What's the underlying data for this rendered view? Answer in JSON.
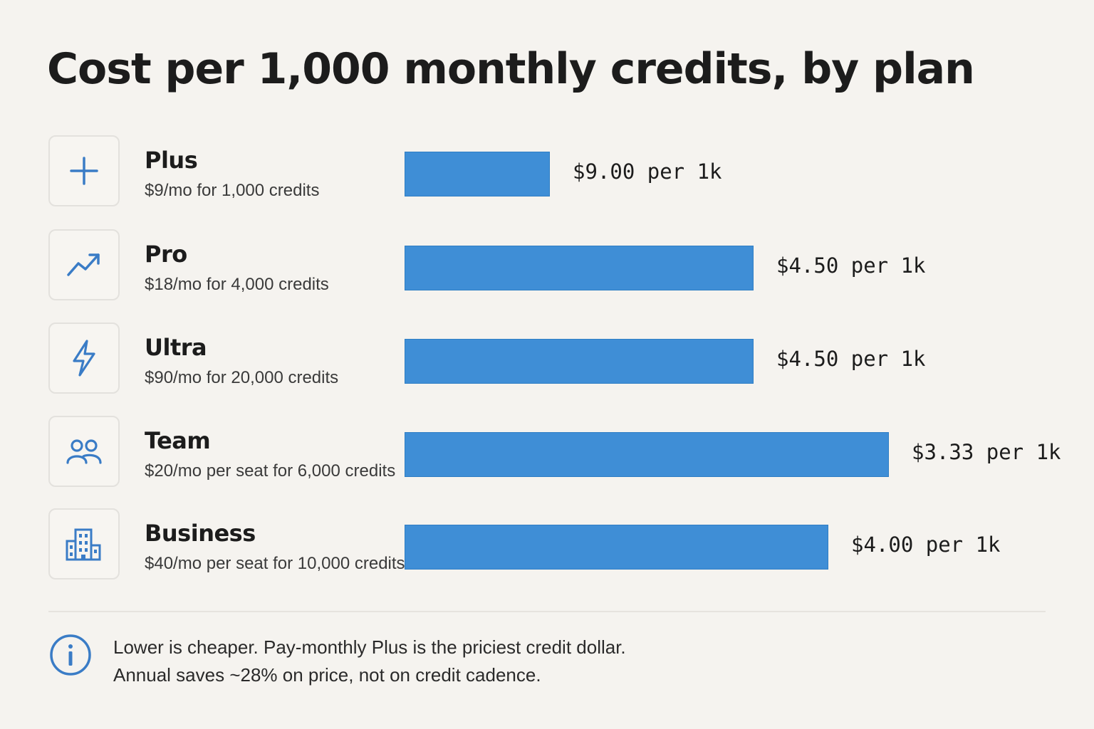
{
  "chart_data": {
    "type": "bar",
    "orientation": "horizontal",
    "title": "Cost per 1,000 monthly credits, by plan",
    "categories": [
      "Plus",
      "Pro",
      "Ultra",
      "Team",
      "Business"
    ],
    "descriptions": [
      "$9/mo for 1,000 credits",
      "$18/mo for 4,000 credits",
      "$90/mo for 20,000 credits",
      "$20/mo per seat for 6,000 credits",
      "$40/mo per seat for 10,000 credits"
    ],
    "values": [
      9.0,
      4.5,
      4.5,
      3.33,
      4.0
    ],
    "bar_fractions": [
      0.3,
      0.72,
      0.72,
      1.0,
      0.875
    ],
    "value_labels": [
      "$9.00 per 1k",
      "$4.50 per 1k",
      "$4.50 per 1k",
      "$3.33 per 1k",
      "$4.00 per 1k"
    ],
    "icons": [
      "plus-icon",
      "trending-up-icon",
      "lightning-icon",
      "users-icon",
      "building-icon"
    ],
    "bar_color": "#3f8ed6",
    "grid": false,
    "legend": "none"
  },
  "footnote": {
    "line1": "Lower is cheaper. Pay-monthly Plus is the priciest credit dollar.",
    "line2": "Annual saves ~28% on price, not on credit cadence."
  },
  "colors": {
    "accent": "#3f8ed6",
    "icon": "#3a7cc6",
    "background": "#f5f3ef"
  }
}
